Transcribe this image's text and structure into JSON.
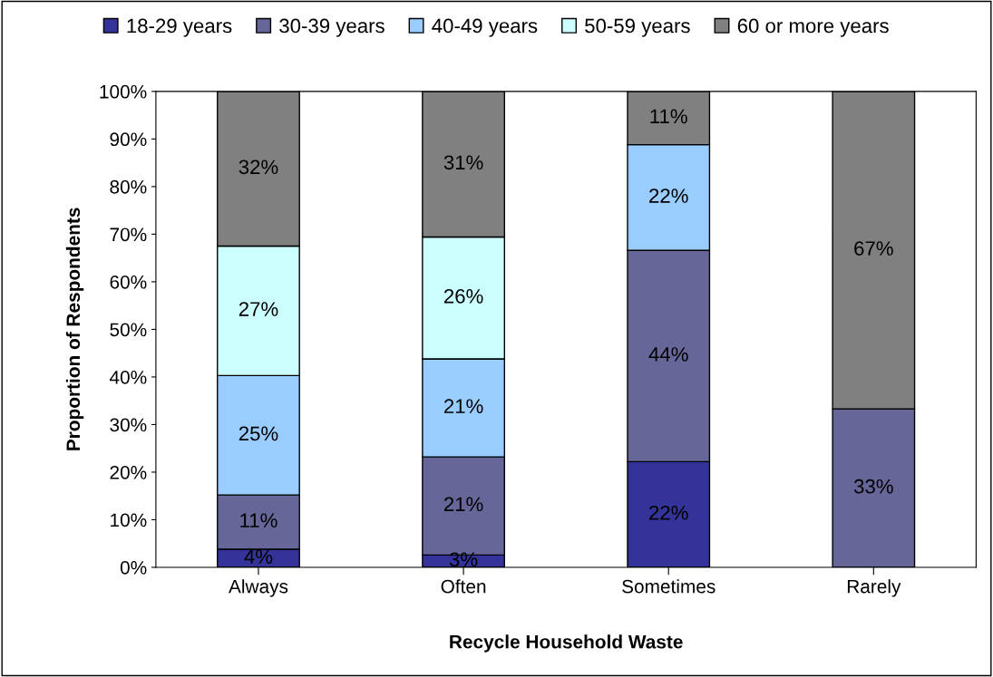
{
  "chart_data": {
    "type": "bar",
    "stacked": true,
    "xlabel": "Recycle Household Waste",
    "ylabel": "Proportion of Respondents",
    "categories": [
      "Always",
      "Often",
      "Sometimes",
      "Rarely"
    ],
    "series": [
      {
        "name": "18-29 years",
        "color": "#333399",
        "values": [
          3.8,
          2.6,
          22.2,
          null
        ],
        "value_labels": [
          "4%",
          "3%",
          "22%",
          null
        ]
      },
      {
        "name": "30-39 years",
        "color": "#666699",
        "values": [
          11.4,
          20.6,
          44.4,
          33.3
        ],
        "value_labels": [
          "11%",
          "21%",
          "44%",
          "33%"
        ]
      },
      {
        "name": "40-49 years",
        "color": "#99ccff",
        "values": [
          25.1,
          20.6,
          22.2,
          null
        ],
        "value_labels": [
          "25%",
          "21%",
          "22%",
          null
        ]
      },
      {
        "name": "50-59 years",
        "color": "#ccffff",
        "values": [
          27.2,
          25.6,
          null,
          null
        ],
        "value_labels": [
          "27%",
          "26%",
          null,
          null
        ]
      },
      {
        "name": "60 or more years",
        "color": "#808080",
        "values": [
          32.5,
          30.6,
          11.2,
          66.7
        ],
        "value_labels": [
          "32%",
          "31%",
          "11%",
          "67%"
        ]
      }
    ],
    "ylim": [
      0,
      100
    ],
    "yticks": [
      {
        "value": 0,
        "label": "0%"
      },
      {
        "value": 10,
        "label": "10%"
      },
      {
        "value": 20,
        "label": "20%"
      },
      {
        "value": 30,
        "label": "30%"
      },
      {
        "value": 40,
        "label": "40%"
      },
      {
        "value": 50,
        "label": "50%"
      },
      {
        "value": 60,
        "label": "60%"
      },
      {
        "value": 70,
        "label": "70%"
      },
      {
        "value": 80,
        "label": "80%"
      },
      {
        "value": 90,
        "label": "90%"
      },
      {
        "value": 100,
        "label": "100%"
      }
    ],
    "grid": false,
    "legend": "top"
  }
}
